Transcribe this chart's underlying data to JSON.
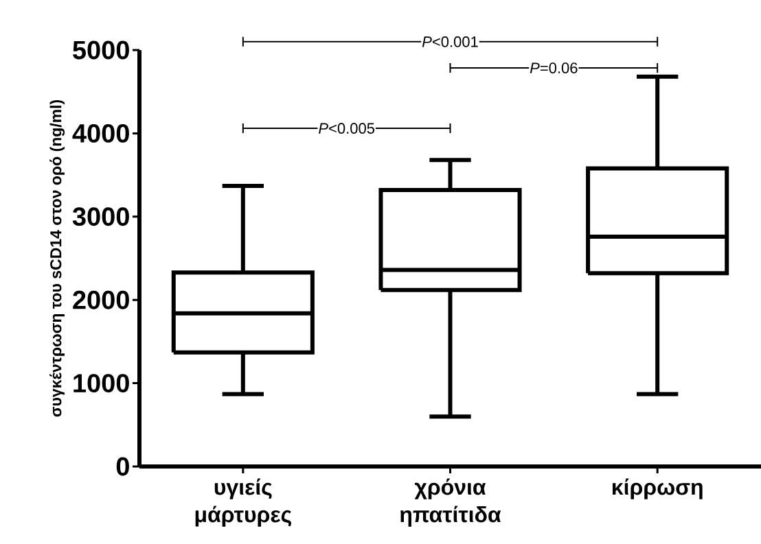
{
  "chart_data": {
    "type": "box",
    "ylabel": "συγκέντρωση του sCD14 στον ορό (ng/ml)",
    "categories": [
      "υγιείς μάρτυρες",
      "χρόνια ηπατίτιδα",
      "κίρρωση"
    ],
    "boxes": [
      {
        "low": 870,
        "q1": 1370,
        "median": 1840,
        "q3": 2330,
        "high": 3370
      },
      {
        "low": 600,
        "q1": 2120,
        "median": 2360,
        "q3": 3320,
        "high": 3680
      },
      {
        "low": 870,
        "q1": 2320,
        "median": 2760,
        "q3": 3580,
        "high": 4680
      }
    ],
    "color": "#000000",
    "ylim": [
      0,
      5000
    ],
    "yticks": [
      0,
      1000,
      2000,
      3000,
      4000,
      5000
    ],
    "annotations": [
      "*P*<0.001",
      "*P*=0.06",
      "*P*<0.005"
    ]
  }
}
